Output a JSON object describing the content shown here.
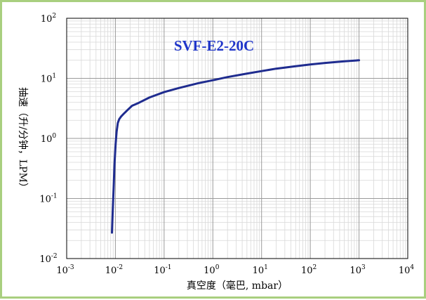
{
  "chart_data": {
    "type": "line",
    "title": "SVF-E2-20C",
    "xlabel": "真空度（毫巴, mbar）",
    "ylabel": "抽速（升/分钟，LPM）",
    "x_scale": "log",
    "y_scale": "log",
    "xlim": [
      0.001,
      10000
    ],
    "ylim": [
      0.01,
      100
    ],
    "grid": true,
    "x_ticks": [
      {
        "base": "10",
        "exp": "-3"
      },
      {
        "base": "10",
        "exp": "-2"
      },
      {
        "base": "10",
        "exp": "-1"
      },
      {
        "base": "10",
        "exp": "0"
      },
      {
        "base": "10",
        "exp": "1"
      },
      {
        "base": "10",
        "exp": "2"
      },
      {
        "base": "10",
        "exp": "3"
      },
      {
        "base": "10",
        "exp": "4"
      }
    ],
    "y_ticks": [
      {
        "base": "10",
        "exp": "-2"
      },
      {
        "base": "10",
        "exp": "-1"
      },
      {
        "base": "10",
        "exp": "0"
      },
      {
        "base": "10",
        "exp": "1"
      },
      {
        "base": "10",
        "exp": "2"
      }
    ],
    "line_color": "#1f2c8f",
    "series": [
      {
        "x": [
          0.0085,
          0.0088,
          0.0092,
          0.0096,
          0.0101,
          0.0106,
          0.0112,
          0.012,
          0.013,
          0.015,
          0.018,
          0.022,
          0.03,
          0.05,
          0.1,
          0.2,
          0.5,
          1,
          2,
          5,
          10,
          20,
          50,
          100,
          200,
          500,
          1000
        ],
        "y": [
          0.027,
          0.06,
          0.15,
          0.38,
          0.8,
          1.3,
          1.8,
          2.1,
          2.3,
          2.6,
          3.0,
          3.5,
          3.9,
          4.8,
          5.9,
          6.9,
          8.3,
          9.3,
          10.5,
          12.0,
          13.2,
          14.5,
          15.9,
          17.0,
          18.0,
          19.2,
          20.0
        ]
      }
    ]
  }
}
